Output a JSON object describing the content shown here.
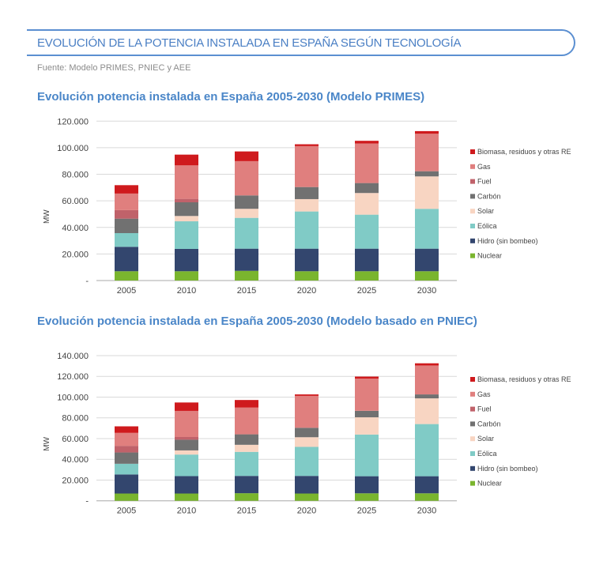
{
  "header": {
    "title": "EVOLUCIÓN DE LA POTENCIA INSTALADA EN ESPAÑA SEGÚN TECNOLOGÍA",
    "source": "Fuente: Modelo PRIMES, PNIEC y AEE"
  },
  "colors": {
    "Nuclear": "#7ab52e",
    "Hidro (sin bombeo)": "#33466e",
    "Eólica": "#80cbc6",
    "Solar": "#f8d5c2",
    "Carbón": "#717171",
    "Fuel": "#c0626a",
    "Gas": "#e07f7e",
    "Biomasa, residuos y otras RE": "#cf1a1d",
    "title": "#4a86c8",
    "header": "#4a7fc4"
  },
  "chart_data": [
    {
      "type": "bar",
      "stacked": true,
      "title": "Evolución potencia instalada en España 2005-2030 (Modelo PRIMES)",
      "xlabel": "",
      "ylabel": "MW",
      "ylim": [
        0,
        120000
      ],
      "yticks": [
        0,
        20000,
        40000,
        60000,
        80000,
        100000,
        120000
      ],
      "ytick_labels": [
        "-",
        "20.000",
        "40.000",
        "60.000",
        "80.000",
        "100.000",
        "120.000"
      ],
      "grid": true,
      "legend_position": "right",
      "categories": [
        "2005",
        "2010",
        "2015",
        "2020",
        "2025",
        "2030"
      ],
      "series": [
        {
          "name": "Nuclear",
          "values": [
            7000,
            7000,
            7300,
            7000,
            7000,
            7000
          ]
        },
        {
          "name": "Hidro (sin bombeo)",
          "values": [
            18400,
            16800,
            16700,
            17000,
            17000,
            17000
          ]
        },
        {
          "name": "Eólica",
          "values": [
            10300,
            20800,
            23200,
            28000,
            25600,
            30000
          ]
        },
        {
          "name": "Solar",
          "values": [
            0,
            4000,
            6800,
            9300,
            16300,
            24400
          ]
        },
        {
          "name": "Carbón",
          "values": [
            10900,
            10300,
            10100,
            9100,
            7500,
            3900
          ]
        },
        {
          "name": "Fuel",
          "values": [
            6400,
            2600,
            0,
            0,
            0,
            0
          ]
        },
        {
          "name": "Gas",
          "values": [
            12500,
            25200,
            25800,
            30800,
            29800,
            28200
          ]
        },
        {
          "name": "Biomasa, residuos y otras RE",
          "values": [
            6300,
            8100,
            7300,
            1400,
            2000,
            2000
          ]
        }
      ],
      "legend": [
        "Biomasa, residuos y otras RE",
        "Gas",
        "Fuel",
        "Carbón",
        "Solar",
        "Eólica",
        "Hidro (sin bombeo)",
        "Nuclear"
      ]
    },
    {
      "type": "bar",
      "stacked": true,
      "title": "Evolución potencia instalada en España 2005-2030 (Modelo basado en PNIEC)",
      "xlabel": "",
      "ylabel": "MW",
      "ylim": [
        0,
        140000
      ],
      "yticks": [
        0,
        20000,
        40000,
        60000,
        80000,
        100000,
        120000,
        140000
      ],
      "ytick_labels": [
        "-",
        "20.000",
        "40.000",
        "60.000",
        "80.000",
        "100.000",
        "120.000",
        "140.000"
      ],
      "grid": true,
      "legend_position": "right",
      "categories": [
        "2005",
        "2010",
        "2015",
        "2020",
        "2025",
        "2030"
      ],
      "series": [
        {
          "name": "Nuclear",
          "values": [
            7000,
            7000,
            7300,
            7000,
            7200,
            7200
          ]
        },
        {
          "name": "Hidro (sin bombeo)",
          "values": [
            18400,
            16800,
            16700,
            17000,
            16500,
            16500
          ]
        },
        {
          "name": "Eólica",
          "values": [
            10300,
            20800,
            23200,
            28000,
            40200,
            50300
          ]
        },
        {
          "name": "Solar",
          "values": [
            0,
            4000,
            6800,
            9300,
            16600,
            24800
          ]
        },
        {
          "name": "Carbón",
          "values": [
            10900,
            10300,
            10100,
            9100,
            6300,
            3800
          ]
        },
        {
          "name": "Fuel",
          "values": [
            6400,
            2600,
            0,
            0,
            0,
            0
          ]
        },
        {
          "name": "Gas",
          "values": [
            12500,
            25200,
            25800,
            30800,
            31100,
            27900
          ]
        },
        {
          "name": "Biomasa, residuos y otras RE",
          "values": [
            6300,
            8100,
            7300,
            1400,
            1900,
            2100
          ]
        }
      ],
      "legend": [
        "Biomasa, residuos y otras RE",
        "Gas",
        "Fuel",
        "Carbón",
        "Solar",
        "Eólica",
        "Hidro (sin bombeo)",
        "Nuclear"
      ]
    }
  ]
}
